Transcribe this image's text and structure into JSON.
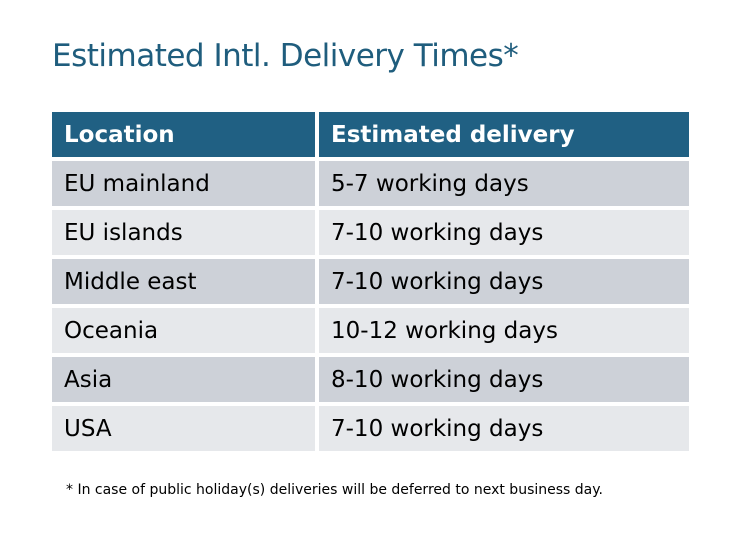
{
  "title": "Estimated Intl. Delivery Times*",
  "table": {
    "headers": [
      "Location",
      "Estimated delivery"
    ],
    "rows": [
      [
        "EU mainland",
        "5-7 working days"
      ],
      [
        "EU islands",
        "7-10 working days"
      ],
      [
        "Middle east",
        "7-10 working days"
      ],
      [
        "Oceania",
        "10-12 working days"
      ],
      [
        "Asia",
        "8-10 working days"
      ],
      [
        "USA",
        "7-10 working days"
      ]
    ]
  },
  "footnote": "* In case of public holiday(s) deliveries will be deferred to next business day.",
  "colors": {
    "header_bg": "#206083",
    "title": "#1f5d7d",
    "row_odd": "#cdd1d8",
    "row_even": "#e6e8eb"
  }
}
